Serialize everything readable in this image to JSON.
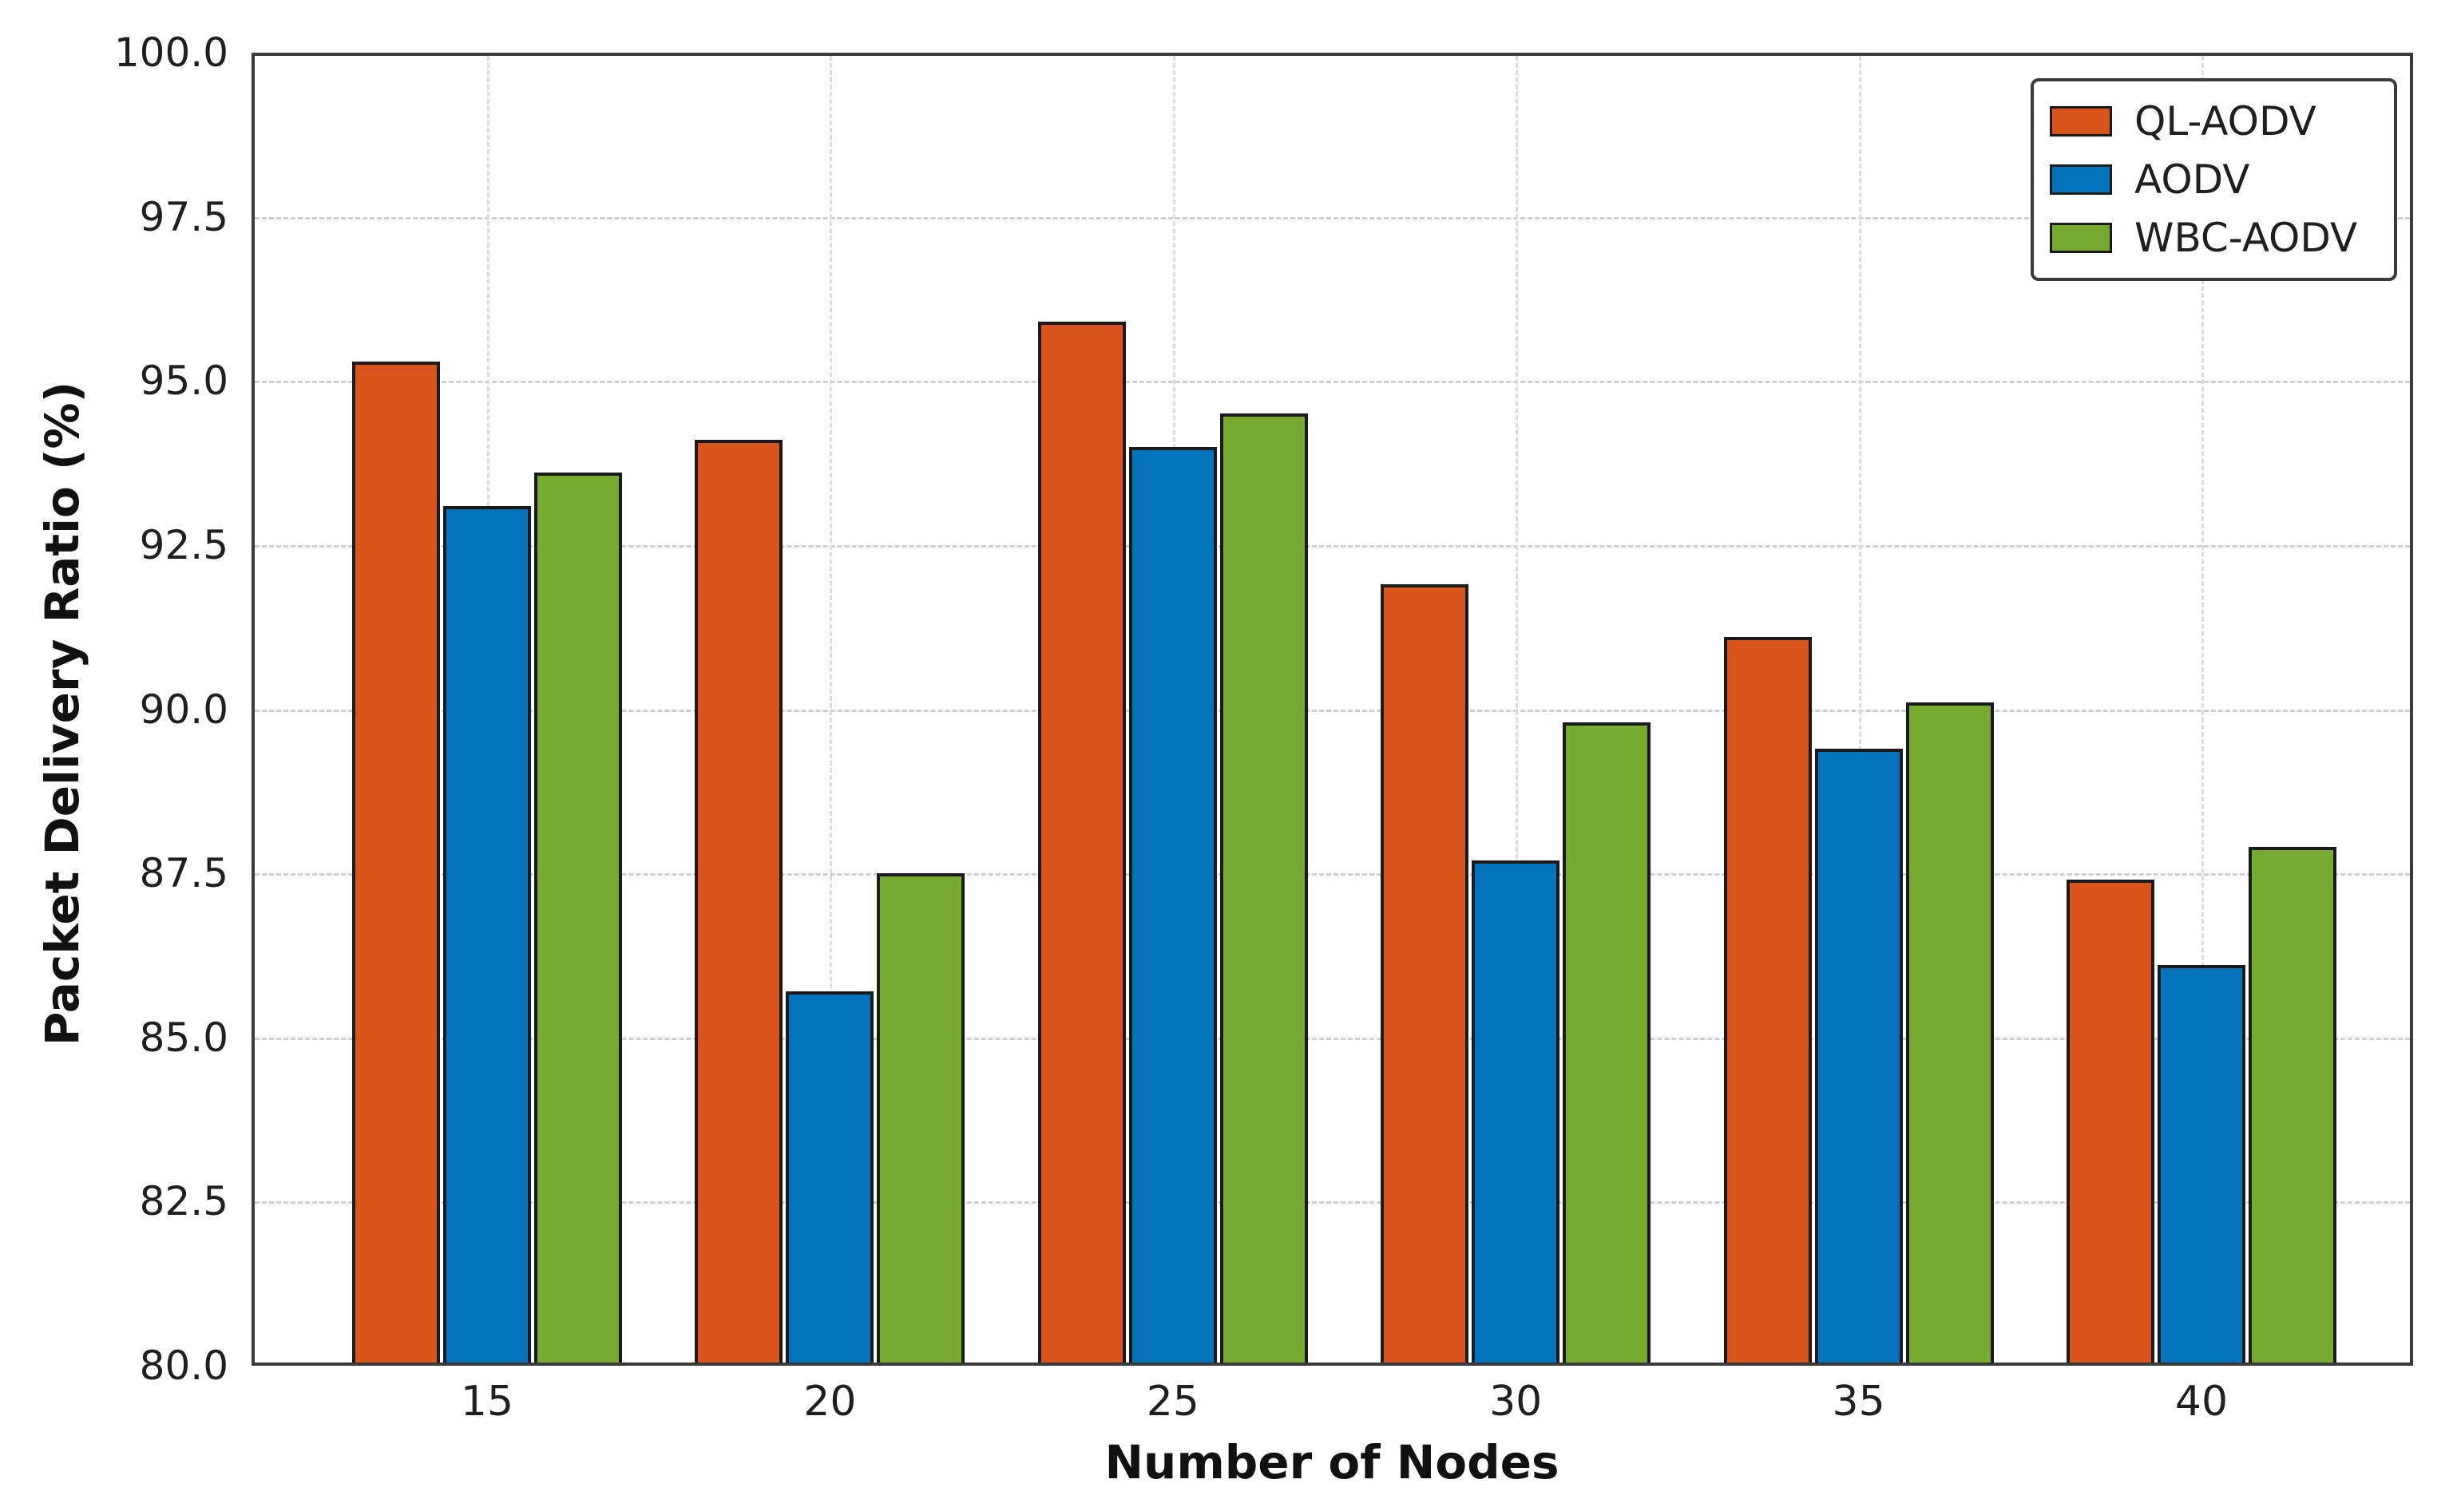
{
  "chart_data": {
    "type": "bar",
    "title": "",
    "xlabel": "Number of Nodes",
    "ylabel": "Packet Delivery Ratio (%)",
    "categories": [
      "15",
      "20",
      "25",
      "30",
      "35",
      "40"
    ],
    "series": [
      {
        "name": "QL-AODV",
        "color": "#D9531C",
        "values": [
          95.3,
          94.1,
          95.9,
          91.9,
          91.1,
          87.4
        ]
      },
      {
        "name": "AODV",
        "color": "#0473BE",
        "values": [
          93.1,
          85.7,
          94.0,
          87.7,
          89.4,
          86.1
        ]
      },
      {
        "name": "WBC-AODV",
        "color": "#77AB2F",
        "values": [
          93.6,
          87.5,
          94.5,
          89.8,
          90.1,
          87.9
        ]
      }
    ],
    "ylim": [
      80,
      100
    ],
    "yticks": [
      80.0,
      82.5,
      85.0,
      87.5,
      90.0,
      92.5,
      95.0,
      97.5,
      100.0
    ],
    "ytick_labels": [
      "80.0",
      "82.5",
      "85.0",
      "87.5",
      "90.0",
      "92.5",
      "95.0",
      "97.5",
      "100.0"
    ],
    "grid": true,
    "legend_position": "upper right",
    "colors": {
      "bar_edge": "#1a1a1a",
      "spine": "#3a3a3a",
      "gridline": "#cfcfcf",
      "text": "#1f1f1f"
    }
  }
}
